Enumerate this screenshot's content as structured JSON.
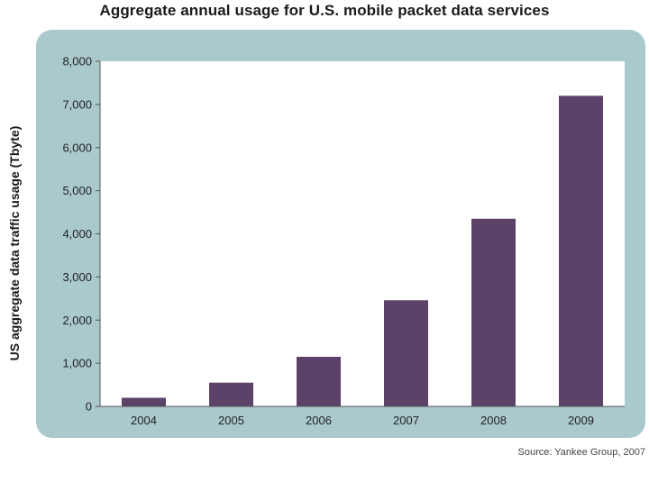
{
  "chart_data": {
    "type": "bar",
    "title": "Aggregate annual usage for U.S. mobile packet data services",
    "xlabel": "",
    "ylabel": "US aggregate data traffic usage (Tbyte)",
    "categories": [
      "2004",
      "2005",
      "2006",
      "2007",
      "2008",
      "2009"
    ],
    "values": [
      200,
      550,
      1150,
      2460,
      4350,
      7200
    ],
    "ylim": [
      0,
      8000
    ],
    "yticks": [
      0,
      1000,
      2000,
      3000,
      4000,
      5000,
      6000,
      7000,
      8000
    ],
    "ytick_labels": [
      "0",
      "1,000",
      "2,000",
      "3,000",
      "4,000",
      "5,000",
      "6,000",
      "7,000",
      "8,000"
    ],
    "grid": false,
    "legend": "none",
    "colors": {
      "bar": "#5c4268",
      "frame": "#a9c9cd",
      "plot_background": "#ffffff"
    }
  },
  "source_note": "Source: Yankee Group, 2007"
}
